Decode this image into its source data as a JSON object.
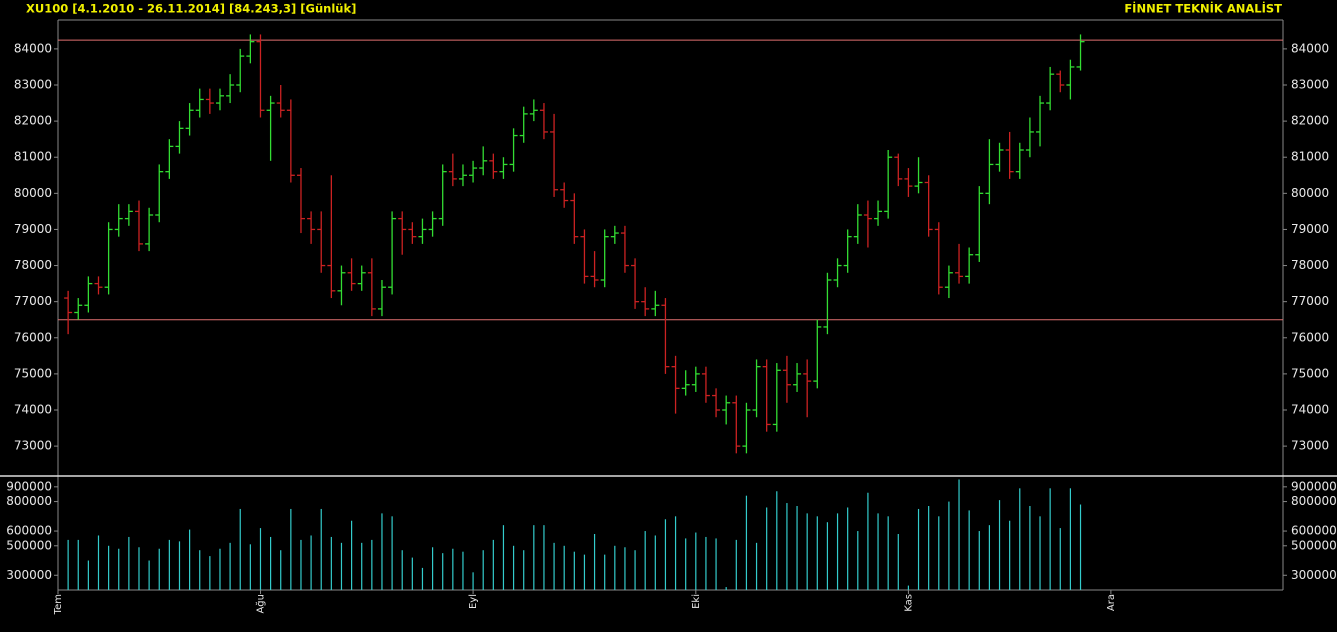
{
  "chart_data": {
    "type": "ohlc",
    "title": "XU100  [4.1.2010 - 26.11.2014]  [84.243,3]  [Günlük]",
    "source": "FİNNET TEKNİK ANALİST",
    "x": [
      1,
      2,
      3,
      4,
      5,
      6,
      7,
      8,
      9,
      10,
      11,
      12,
      13,
      14,
      15,
      16,
      17,
      18,
      19,
      20,
      21,
      22,
      23,
      24,
      25,
      26,
      27,
      28,
      29,
      30,
      31,
      32,
      33,
      34,
      35,
      36,
      37,
      38,
      39,
      40,
      41,
      42,
      43,
      44,
      45,
      46,
      47,
      48,
      49,
      50,
      51,
      52,
      53,
      54,
      55,
      56,
      57,
      58,
      59,
      60,
      61,
      62,
      63,
      64,
      65,
      66,
      67,
      68,
      69,
      70,
      71,
      72,
      73,
      74,
      75,
      76,
      77,
      78,
      79,
      80,
      81,
      82,
      83,
      84,
      85,
      86,
      87,
      88,
      89,
      90,
      91,
      92,
      93,
      94,
      95,
      96,
      97,
      98,
      99,
      100,
      101
    ],
    "open": [
      77100,
      76700,
      76900,
      77500,
      77400,
      79000,
      79300,
      79500,
      78600,
      79400,
      80600,
      81300,
      81800,
      82300,
      82600,
      82500,
      82700,
      83000,
      83800,
      84200,
      82300,
      82500,
      82300,
      80500,
      79300,
      79000,
      78000,
      77300,
      77800,
      77500,
      77800,
      76800,
      77400,
      79300,
      79000,
      78800,
      79000,
      79300,
      80600,
      80400,
      80500,
      80700,
      80900,
      80600,
      80800,
      81600,
      82200,
      82300,
      81700,
      80100,
      79800,
      78800,
      77700,
      77600,
      78800,
      78900,
      78000,
      77000,
      76800,
      76900,
      75200,
      74600,
      74700,
      75000,
      74400,
      74000,
      74200,
      73000,
      74000,
      75200,
      73600,
      75100,
      74700,
      75000,
      74800,
      76300,
      77600,
      78000,
      78800,
      79400,
      79300,
      79500,
      81000,
      80400,
      80200,
      80300,
      79000,
      77400,
      77800,
      77700,
      78300,
      80000,
      80800,
      81200,
      80600,
      81200,
      81700,
      82500,
      83300,
      83000,
      83500
    ],
    "high": [
      77300,
      77100,
      77700,
      77700,
      79200,
      79700,
      79700,
      79800,
      79600,
      80800,
      81500,
      82000,
      82500,
      82900,
      82900,
      82900,
      83300,
      84000,
      84400,
      84400,
      82700,
      83000,
      82600,
      80700,
      79500,
      79500,
      80500,
      78000,
      78200,
      78000,
      78200,
      77600,
      79500,
      79500,
      79200,
      79300,
      79500,
      80800,
      81100,
      80800,
      80900,
      81300,
      81100,
      81000,
      81800,
      82400,
      82600,
      82500,
      82200,
      80300,
      80000,
      79000,
      78400,
      79000,
      79100,
      79100,
      78200,
      77400,
      77300,
      77100,
      75500,
      75100,
      75200,
      75200,
      74600,
      74400,
      74400,
      74200,
      75400,
      75400,
      75300,
      75500,
      75300,
      75400,
      76500,
      77800,
      78200,
      79000,
      79700,
      79800,
      79800,
      81200,
      81100,
      80700,
      81000,
      80500,
      79200,
      78000,
      78600,
      78500,
      80200,
      81500,
      81400,
      81700,
      81400,
      82100,
      82700,
      83500,
      83400,
      83700,
      84400
    ],
    "low": [
      76100,
      76500,
      76700,
      77200,
      77200,
      78800,
      79100,
      78400,
      78400,
      79200,
      80400,
      81100,
      81600,
      82100,
      82200,
      82300,
      82500,
      82800,
      83600,
      82100,
      80900,
      82100,
      80300,
      78900,
      78600,
      77800,
      77100,
      76900,
      77300,
      77300,
      76600,
      76600,
      77200,
      78300,
      78600,
      78600,
      78800,
      79100,
      80200,
      80200,
      80300,
      80500,
      80400,
      80400,
      80600,
      81400,
      82000,
      81500,
      79900,
      79600,
      78600,
      77500,
      77400,
      77400,
      78600,
      77800,
      76800,
      76600,
      76600,
      75000,
      73900,
      74400,
      74500,
      74200,
      73800,
      73600,
      72800,
      72800,
      73800,
      73400,
      73400,
      74200,
      74500,
      73800,
      74600,
      76100,
      77400,
      77800,
      78600,
      78500,
      79100,
      79300,
      80200,
      79900,
      80000,
      78800,
      77200,
      77100,
      77500,
      77500,
      78100,
      79700,
      80600,
      80400,
      80400,
      81000,
      81300,
      82300,
      82800,
      82600,
      83400
    ],
    "close": [
      76700,
      76900,
      77500,
      77400,
      79000,
      79300,
      79500,
      78600,
      79400,
      80600,
      81300,
      81800,
      82300,
      82600,
      82500,
      82700,
      83000,
      83800,
      84200,
      82300,
      82500,
      82300,
      80500,
      79300,
      79000,
      78000,
      77300,
      77800,
      77500,
      77800,
      76800,
      77400,
      79300,
      79000,
      78800,
      79000,
      79300,
      80600,
      80400,
      80500,
      80700,
      80900,
      80600,
      80800,
      81600,
      82200,
      82300,
      81700,
      80100,
      79800,
      78800,
      77700,
      77600,
      78800,
      78900,
      78000,
      77000,
      76800,
      76900,
      75200,
      74600,
      74700,
      75000,
      74400,
      74000,
      74200,
      73000,
      74000,
      75200,
      73600,
      75100,
      74700,
      75000,
      74800,
      76300,
      77600,
      78000,
      78800,
      79400,
      79300,
      79500,
      81000,
      80400,
      80200,
      80300,
      79000,
      77400,
      77800,
      77700,
      78300,
      80000,
      80800,
      81200,
      80600,
      81200,
      81700,
      82500,
      83300,
      83000,
      83500,
      84200
    ],
    "up_color": "#33dd33",
    "down_color": "#cc2222",
    "xlim": [
      0,
      121
    ],
    "xticks": [
      {
        "value": 0,
        "label": "Tem"
      },
      {
        "value": 20,
        "label": "Ağu"
      },
      {
        "value": 41,
        "label": "Eyl"
      },
      {
        "value": 63,
        "label": "Eki"
      },
      {
        "value": 84,
        "label": "Kas"
      },
      {
        "value": 104,
        "label": "Ara"
      }
    ],
    "ylim": [
      72200,
      84800
    ],
    "yticks": [
      73000,
      74000,
      75000,
      76000,
      77000,
      78000,
      79000,
      80000,
      81000,
      82000,
      83000,
      84000
    ],
    "hlines": [
      84243,
      76500
    ],
    "hline_color": "#e07070",
    "volume": {
      "values": [
        540000,
        540000,
        400000,
        570000,
        500000,
        480000,
        560000,
        490000,
        400000,
        480000,
        540000,
        530000,
        610000,
        470000,
        430000,
        480000,
        520000,
        750000,
        510000,
        620000,
        560000,
        470000,
        750000,
        540000,
        570000,
        750000,
        560000,
        520000,
        670000,
        520000,
        540000,
        720000,
        700000,
        470000,
        420000,
        350000,
        490000,
        450000,
        480000,
        460000,
        320000,
        470000,
        540000,
        640000,
        500000,
        470000,
        640000,
        640000,
        520000,
        500000,
        460000,
        440000,
        580000,
        440000,
        500000,
        490000,
        470000,
        600000,
        570000,
        680000,
        700000,
        550000,
        590000,
        560000,
        550000,
        220000,
        540000,
        840000,
        520000,
        760000,
        870000,
        790000,
        770000,
        720000,
        700000,
        660000,
        720000,
        760000,
        600000,
        860000,
        720000,
        700000,
        580000,
        230000,
        750000,
        770000,
        700000,
        800000,
        950000,
        740000,
        600000,
        640000,
        810000,
        670000,
        890000,
        770000,
        700000,
        890000,
        620000,
        890000,
        780000
      ],
      "color": "#33cccc",
      "ylim": [
        200000,
        960000
      ],
      "yticks": [
        300000,
        500000,
        600000,
        800000,
        900000
      ]
    }
  }
}
